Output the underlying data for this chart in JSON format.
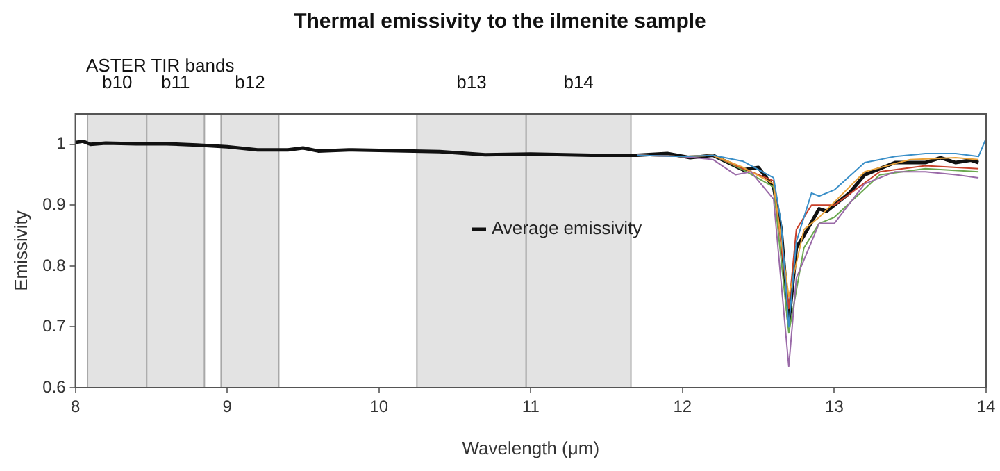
{
  "chart_data": {
    "type": "line",
    "title": "Thermal emissivity to the ilmenite sample",
    "xlabel": "Wavelength (μm)",
    "ylabel": "Emissivity",
    "annotations": [
      "ASTER TIR bands"
    ],
    "xlim": [
      8,
      14
    ],
    "xticks": [
      8,
      9,
      10,
      11,
      12,
      13,
      14
    ],
    "ylim": [
      0.6,
      1.05
    ],
    "yticks": [
      0.6,
      0.7,
      0.8,
      0.9,
      1
    ],
    "grid": false,
    "legend": "center",
    "marker": "none",
    "line_style": "solid",
    "bands": [
      {
        "axis": "x",
        "from": 8.08,
        "to": 8.47,
        "label": "b10",
        "color": "#e3e3e3"
      },
      {
        "axis": "x",
        "from": 8.47,
        "to": 8.85,
        "label": "b11",
        "color": "#e3e3e3"
      },
      {
        "axis": "x",
        "from": 8.96,
        "to": 9.34,
        "label": "b12",
        "color": "#e3e3e3"
      },
      {
        "axis": "x",
        "from": 10.25,
        "to": 10.97,
        "label": "b13",
        "color": "#e3e3e3"
      },
      {
        "axis": "x",
        "from": 10.97,
        "to": 11.66,
        "label": "b14",
        "color": "#e3e3e3"
      }
    ],
    "series": [
      {
        "color": "#3a8fc8",
        "x": [
          11.7,
          12.0,
          12.2,
          12.4,
          12.6,
          12.65,
          12.7,
          12.75,
          12.85,
          12.9,
          13.0,
          13.2,
          13.4,
          13.6,
          13.8,
          13.95,
          14.0
        ],
        "values": [
          0.982,
          0.98,
          0.982,
          0.972,
          0.945,
          0.87,
          0.7,
          0.84,
          0.92,
          0.915,
          0.925,
          0.97,
          0.98,
          0.985,
          0.985,
          0.98,
          1.01
        ]
      },
      {
        "color": "#9a6aa8",
        "x": [
          11.7,
          12.0,
          12.2,
          12.35,
          12.45,
          12.6,
          12.7,
          12.75,
          12.85,
          12.9,
          13.0,
          13.2,
          13.4,
          13.6,
          13.8,
          13.95
        ],
        "values": [
          0.982,
          0.98,
          0.975,
          0.95,
          0.955,
          0.91,
          0.635,
          0.78,
          0.84,
          0.87,
          0.87,
          0.935,
          0.955,
          0.955,
          0.95,
          0.945
        ]
      },
      {
        "color": "#e8a23a",
        "x": [
          11.7,
          12.0,
          12.2,
          12.4,
          12.6,
          12.7,
          12.8,
          12.9,
          13.2,
          13.5,
          13.8,
          13.95
        ],
        "values": [
          0.982,
          0.98,
          0.982,
          0.962,
          0.935,
          0.75,
          0.86,
          0.88,
          0.955,
          0.975,
          0.978,
          0.975
        ]
      },
      {
        "color": "#c8402a",
        "x": [
          11.7,
          12.0,
          12.2,
          12.4,
          12.6,
          12.7,
          12.75,
          12.85,
          13.0,
          13.3,
          13.6,
          13.95
        ],
        "values": [
          0.982,
          0.98,
          0.982,
          0.96,
          0.94,
          0.73,
          0.86,
          0.9,
          0.9,
          0.955,
          0.965,
          0.96
        ]
      },
      {
        "color": "#6aa84f",
        "x": [
          11.7,
          12.0,
          12.2,
          12.4,
          12.6,
          12.7,
          12.8,
          12.9,
          13.0,
          13.3,
          13.6,
          13.95
        ],
        "values": [
          0.982,
          0.98,
          0.982,
          0.958,
          0.93,
          0.69,
          0.83,
          0.87,
          0.88,
          0.95,
          0.96,
          0.955
        ]
      },
      {
        "name": "Average emissivity",
        "color": "#111111",
        "x": [
          8.0,
          8.05,
          8.1,
          8.2,
          8.4,
          8.6,
          8.8,
          9.0,
          9.2,
          9.4,
          9.5,
          9.6,
          9.8,
          10.0,
          10.4,
          10.7,
          11.0,
          11.4,
          11.7,
          11.9,
          12.05,
          12.2,
          12.4,
          12.5,
          12.6,
          12.65,
          12.7,
          12.75,
          12.8,
          12.9,
          12.95,
          13.1,
          13.2,
          13.4,
          13.6,
          13.7,
          13.8,
          13.9,
          13.95
        ],
        "values": [
          1.003,
          1.005,
          1.0,
          1.002,
          1.001,
          1.001,
          0.999,
          0.996,
          0.991,
          0.991,
          0.994,
          0.989,
          0.991,
          0.99,
          0.988,
          0.983,
          0.984,
          0.982,
          0.982,
          0.985,
          0.978,
          0.982,
          0.958,
          0.962,
          0.93,
          0.86,
          0.706,
          0.83,
          0.85,
          0.894,
          0.89,
          0.92,
          0.95,
          0.97,
          0.97,
          0.978,
          0.97,
          0.974,
          0.97
        ]
      }
    ]
  }
}
